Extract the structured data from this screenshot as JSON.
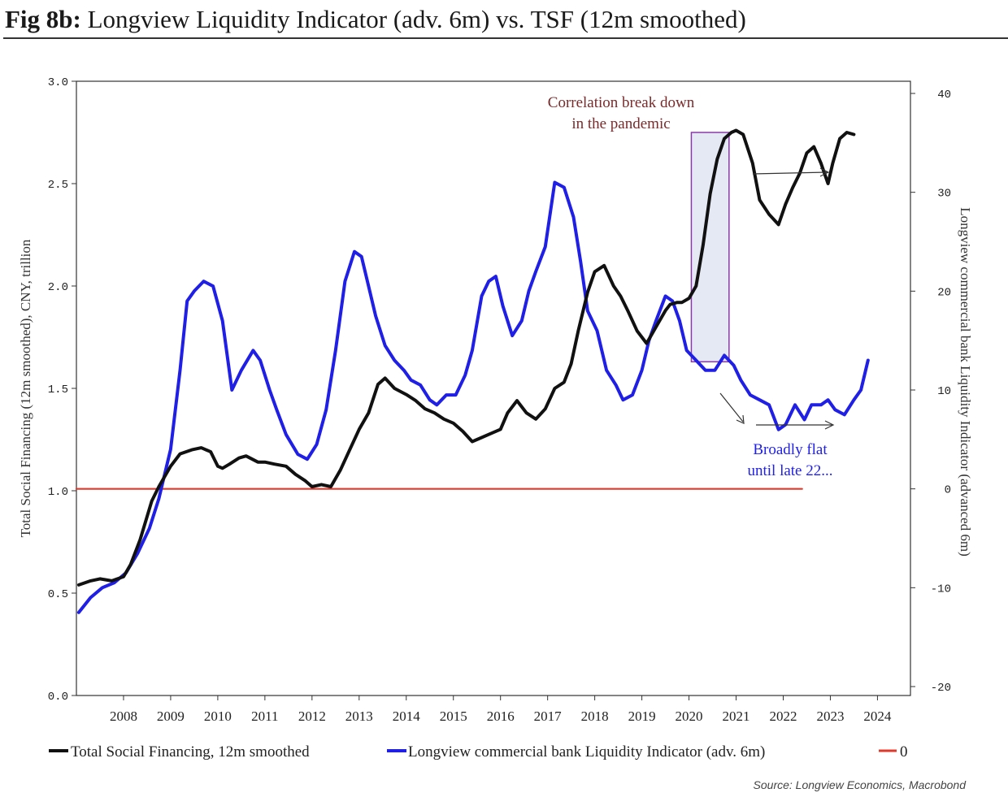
{
  "title_prefix": "Fig 8b:",
  "title_rest": " Longview Liquidity Indicator (adv. 6m) vs. TSF (12m smoothed)",
  "source": "Source: Longview Economics, Macrobond",
  "chart_data": {
    "type": "line",
    "title": "Fig 8b: Longview Liquidity Indicator (adv. 6m) vs. TSF (12m smoothed)",
    "x_range": [
      2007.0,
      2024.7
    ],
    "x_tick_labels": [
      "2008",
      "2009",
      "2010",
      "2011",
      "2012",
      "2013",
      "2014",
      "2015",
      "2016",
      "2017",
      "2018",
      "2019",
      "2020",
      "2021",
      "2022",
      "2023",
      "2024"
    ],
    "y_left": {
      "label": "Total Social Financing (12m smoothed), CNY, trillion",
      "ylim": [
        0,
        3.0
      ],
      "tick_labels": [
        "0.0",
        "0.5",
        "1.0",
        "1.5",
        "2.0",
        "2.5",
        "3.0"
      ]
    },
    "y_right": {
      "label": "Longview commercial bank Liquidity Indicator (advanced 6m)",
      "ylim": [
        -20,
        40
      ],
      "tick_labels": [
        "-20",
        "-10",
        "0",
        "10",
        "20",
        "30",
        "40"
      ]
    },
    "series": [
      {
        "name": "Total Social Financing, 12m smoothed",
        "axis": "left",
        "color": "#111111",
        "x": [
          2007.05,
          2007.3,
          2007.5,
          2007.75,
          2008.0,
          2008.15,
          2008.35,
          2008.6,
          2008.75,
          2009.0,
          2009.2,
          2009.45,
          2009.65,
          2009.85,
          2010.0,
          2010.1,
          2010.25,
          2010.45,
          2010.6,
          2010.85,
          2011.0,
          2011.2,
          2011.45,
          2011.65,
          2011.85,
          2012.0,
          2012.2,
          2012.4,
          2012.6,
          2012.8,
          2013.0,
          2013.2,
          2013.4,
          2013.55,
          2013.75,
          2014.0,
          2014.2,
          2014.4,
          2014.6,
          2014.8,
          2015.0,
          2015.2,
          2015.4,
          2015.6,
          2015.8,
          2016.0,
          2016.15,
          2016.35,
          2016.55,
          2016.75,
          2016.95,
          2017.15,
          2017.35,
          2017.5,
          2017.65,
          2017.85,
          2018.0,
          2018.2,
          2018.4,
          2018.55,
          2018.7,
          2018.9,
          2019.1,
          2019.3,
          2019.5,
          2019.6,
          2019.75,
          2019.85,
          2020.0,
          2020.15,
          2020.3,
          2020.45,
          2020.6,
          2020.75,
          2020.9,
          2021.0,
          2021.15,
          2021.35,
          2021.5,
          2021.7,
          2021.9,
          2022.05,
          2022.2,
          2022.35,
          2022.5,
          2022.65,
          2022.8,
          2022.95,
          2023.05,
          2023.2,
          2023.35,
          2023.5
        ],
        "y": [
          0.54,
          0.56,
          0.57,
          0.56,
          0.58,
          0.64,
          0.76,
          0.95,
          1.02,
          1.12,
          1.18,
          1.2,
          1.21,
          1.19,
          1.12,
          1.11,
          1.13,
          1.16,
          1.17,
          1.14,
          1.14,
          1.13,
          1.12,
          1.08,
          1.05,
          1.02,
          1.03,
          1.02,
          1.1,
          1.2,
          1.3,
          1.38,
          1.52,
          1.55,
          1.5,
          1.47,
          1.44,
          1.4,
          1.38,
          1.35,
          1.33,
          1.29,
          1.24,
          1.26,
          1.28,
          1.3,
          1.38,
          1.44,
          1.38,
          1.35,
          1.4,
          1.5,
          1.53,
          1.62,
          1.78,
          1.97,
          2.07,
          2.1,
          2.0,
          1.95,
          1.88,
          1.78,
          1.72,
          1.8,
          1.88,
          1.91,
          1.92,
          1.92,
          1.94,
          2.0,
          2.2,
          2.45,
          2.62,
          2.72,
          2.75,
          2.76,
          2.74,
          2.6,
          2.42,
          2.35,
          2.3,
          2.4,
          2.48,
          2.55,
          2.65,
          2.68,
          2.6,
          2.5,
          2.6,
          2.72,
          2.75,
          2.74
        ]
      },
      {
        "name": "Longview commercial bank Liquidity Indicator (adv. 6m)",
        "axis": "right",
        "color": "#1f1fe6",
        "x": [
          2007.05,
          2007.3,
          2007.55,
          2007.8,
          2008.05,
          2008.3,
          2008.55,
          2008.75,
          2009.0,
          2009.2,
          2009.35,
          2009.5,
          2009.7,
          2009.9,
          2010.1,
          2010.3,
          2010.5,
          2010.75,
          2010.9,
          2011.1,
          2011.25,
          2011.45,
          2011.7,
          2011.9,
          2012.1,
          2012.3,
          2012.5,
          2012.7,
          2012.9,
          2013.05,
          2013.2,
          2013.35,
          2013.55,
          2013.75,
          2013.95,
          2014.1,
          2014.3,
          2014.5,
          2014.65,
          2014.85,
          2015.05,
          2015.25,
          2015.4,
          2015.6,
          2015.75,
          2015.9,
          2016.05,
          2016.25,
          2016.45,
          2016.6,
          2016.75,
          2016.95,
          2017.15,
          2017.35,
          2017.55,
          2017.7,
          2017.85,
          2018.05,
          2018.25,
          2018.45,
          2018.6,
          2018.8,
          2019.0,
          2019.15,
          2019.3,
          2019.5,
          2019.65,
          2019.8,
          2019.95,
          2020.15,
          2020.35,
          2020.55,
          2020.75,
          2020.95,
          2021.1,
          2021.3,
          2021.5,
          2021.7,
          2021.9,
          2022.05,
          2022.25,
          2022.45,
          2022.6,
          2022.8,
          2022.95,
          2023.1,
          2023.3,
          2023.5,
          2023.65,
          2023.8
        ],
        "y": [
          -12.5,
          -11.0,
          -10.0,
          -9.5,
          -8.5,
          -6.5,
          -4.0,
          -1.0,
          4.0,
          12.0,
          19.0,
          20.0,
          21.0,
          20.5,
          17.0,
          10.0,
          12.0,
          14.0,
          13.0,
          10.0,
          8.0,
          5.5,
          3.5,
          3.0,
          4.5,
          8.0,
          14.0,
          21.0,
          24.0,
          23.5,
          20.5,
          17.5,
          14.5,
          13.0,
          12.0,
          11.0,
          10.5,
          9.0,
          8.5,
          9.5,
          9.5,
          11.5,
          14.0,
          19.5,
          21.0,
          21.5,
          18.5,
          15.5,
          17.0,
          20.0,
          22.0,
          24.5,
          31.0,
          30.5,
          27.5,
          23.0,
          18.0,
          16.0,
          12.0,
          10.5,
          9.0,
          9.5,
          12.0,
          15.0,
          17.0,
          19.5,
          19.0,
          17.0,
          14.0,
          13.0,
          12.0,
          12.0,
          13.5,
          12.5,
          11.0,
          9.5,
          9.0,
          8.5,
          6.0,
          6.5,
          8.5,
          7.0,
          8.5,
          8.5,
          9.0,
          8.0,
          7.5,
          9.0,
          10.0,
          13.0
        ]
      },
      {
        "name": "0",
        "axis": "right",
        "color": "#e0382b",
        "x": [
          2007.0,
          2022.4
        ],
        "y": [
          0,
          0
        ]
      }
    ],
    "annotations": [
      {
        "text": "Correlation break down",
        "color": "#7a2a2a"
      },
      {
        "text": "in the pandemic",
        "color": "#7a2a2a"
      },
      {
        "text": "Broadly flat",
        "color": "#1f1fe6"
      },
      {
        "text": "until late 22...",
        "color": "#1f1fe6"
      }
    ],
    "shaded_period": {
      "x": [
        2020.05,
        2020.85
      ],
      "y_left": [
        1.63,
        2.75
      ]
    },
    "legend": [
      {
        "label": "Total Social Financing, 12m smoothed",
        "color": "#111111"
      },
      {
        "label": "Longview commercial bank Liquidity Indicator (adv. 6m)",
        "color": "#1f1fe6"
      },
      {
        "label": "0",
        "color": "#e0382b"
      }
    ]
  }
}
